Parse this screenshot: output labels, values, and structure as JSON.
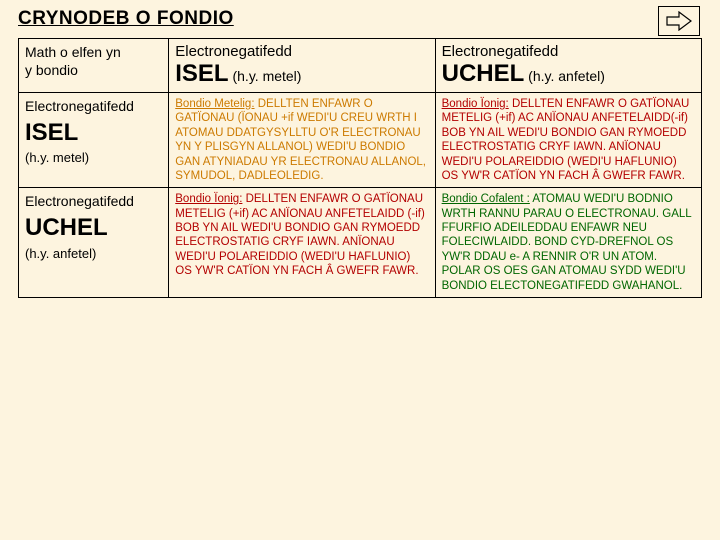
{
  "title": "CRYNODEB O FONDIO",
  "colors": {
    "background": "#fdf4df",
    "metallic": "#cc7a00",
    "ionic": "#b30000",
    "covalent": "#006600",
    "border": "#000000"
  },
  "arrow": {
    "name": "forward-arrow"
  },
  "corner": {
    "line1": "Math o elfen yn",
    "line2": "y bondio"
  },
  "col2": {
    "top": "Electronegatifedd",
    "big": "ISEL",
    "sub": "(h.y. metel)"
  },
  "col3": {
    "top": "Electronegatifedd",
    "big": "UCHEL",
    "sub": "(h.y. anfetel)"
  },
  "row2head": {
    "top": "Electronegatifedd",
    "big": "ISEL",
    "sub": "(h.y. metel)"
  },
  "row3head": {
    "top": "Electronegatifedd",
    "big": "UCHEL",
    "sub": "(h.y. anfetel)"
  },
  "cells": {
    "r2c2": {
      "lead": "Bondio Metelig:",
      "body": " DELLTEN ENFAWR O GATÏONAU (ÏONAU +if WEDI'U CREU WRTH I ATOMAU DDATGYSYLLTU O'R ELECTRONAU YN Y PLISGYN ALLANOL) WEDI'U BONDIO GAN ATYNIADAU YR ELECTRONAU ALLANOL, SYMUDOL, DADLEOLEDIG.",
      "class": "metallic"
    },
    "r2c3": {
      "lead": "Bondio Ïonig:",
      "body": " DELLTEN ENFAWR O GATÏONAU METELIG (+if) AC ANÏONAU ANFETELAIDD(-if) BOB YN AIL WEDI'U BONDIO GAN RYMOEDD ELECTROSTATIG CRYF IAWN. ANÏONAU WEDI'U POLAREIDDIO (WEDI'U HAFLUNIO) OS YW'R CATÏON YN FACH Â GWEFR FAWR.",
      "class": "ionic"
    },
    "r3c2": {
      "lead": "Bondio Ïonig:",
      "body": "  DELLTEN ENFAWR O GATÏONAU METELIG (+if) AC ANÏONAU ANFETELAIDD (-if) BOB YN AIL WEDI'U BONDIO GAN RYMOEDD ELECTROSTATIG CRYF IAWN. ANÏONAU WEDI'U POLAREIDDIO (WEDI'U HAFLUNIO) OS YW'R CATÏON YN FACH Â GWEFR FAWR.",
      "class": "ionic"
    },
    "r3c3": {
      "lead": "Bondio Cofalent :",
      "body": " ATOMAU WEDI'U BODNIO WRTH RANNU PARAU O ELECTRONAU. GALL FFURFIO ADEILEDDAU ENFAWR NEU FOLECIWLAIDD. BOND CYD-DREFNOL OS YW'R DDAU e- A RENNIR O'R UN ATOM. POLAR OS OES GAN ATOMAU SYDD WEDI'U BONDIO ELECTONEGATIFEDD GWAHANOL.",
      "class": "covalent"
    }
  }
}
